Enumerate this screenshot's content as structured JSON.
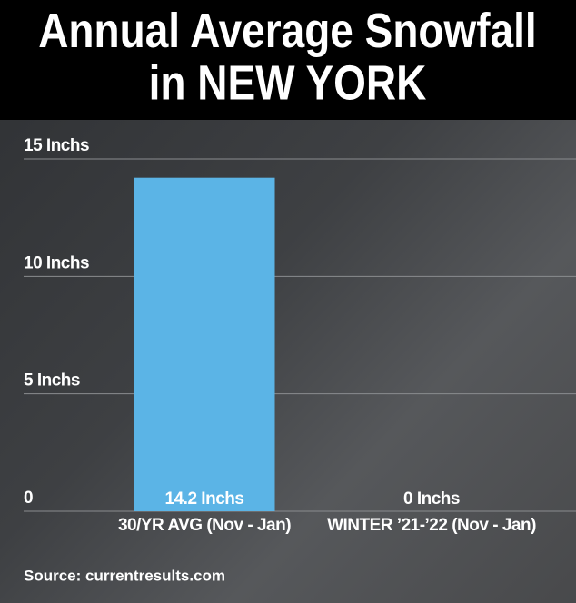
{
  "chart_data": {
    "type": "bar",
    "title": "Annual Average Snowfall",
    "subtitle": "in NEW YORK",
    "categories": [
      "30/YR AVG (Nov - Jan)",
      "WINTER ’21-’22 (Nov - Jan)"
    ],
    "values": [
      14.2,
      0
    ],
    "value_labels": [
      "14.2 Inchs",
      "0 Inchs"
    ],
    "color": "#5bb4e6",
    "ylim": [
      0,
      15
    ],
    "yticks": [
      0,
      {
        "value": 5,
        "label": "5 Inchs"
      },
      {
        "value": 10,
        "label": "10 Inchs"
      },
      {
        "value": 15,
        "label": "15 Inchs"
      }
    ],
    "grid": true,
    "source": "Source: currentresults.com"
  }
}
